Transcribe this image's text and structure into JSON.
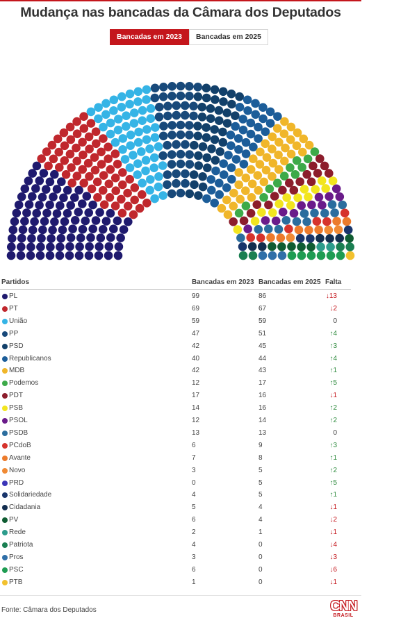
{
  "chart_data": {
    "type": "hemicycle",
    "title": "Mudança nas bancadas da Câmara dos Deputados",
    "tabs": [
      {
        "label": "Bancadas em 2023",
        "active": true
      },
      {
        "label": "Bancadas em 2025",
        "active": false
      }
    ],
    "table": {
      "headers": {
        "party": "Partidos",
        "seats_2023": "Bancadas em 2023",
        "seats_2025": "Bancadas em 2025",
        "change": "Falta"
      },
      "rows": [
        {
          "party": "PL",
          "color": "#1f1a6e",
          "seats_2023": "99",
          "seats_2025": "86",
          "change": "↓13",
          "dir": "down"
        },
        {
          "party": "PT",
          "color": "#c0272d",
          "seats_2023": "69",
          "seats_2025": "67",
          "change": "↓2",
          "dir": "down"
        },
        {
          "party": "União",
          "color": "#35b4e6",
          "seats_2023": "59",
          "seats_2025": "59",
          "change": "0",
          "dir": "zero"
        },
        {
          "party": "PP",
          "color": "#18497a",
          "seats_2023": "47",
          "seats_2025": "51",
          "change": "↑4",
          "dir": "up"
        },
        {
          "party": "PSD",
          "color": "#12406a",
          "seats_2023": "42",
          "seats_2025": "45",
          "change": "↑3",
          "dir": "up"
        },
        {
          "party": "Republicanos",
          "color": "#1c5d99",
          "seats_2023": "40",
          "seats_2025": "44",
          "change": "↑4",
          "dir": "up"
        },
        {
          "party": "MDB",
          "color": "#f0b62a",
          "seats_2023": "42",
          "seats_2025": "43",
          "change": "↑1",
          "dir": "up"
        },
        {
          "party": "Podemos",
          "color": "#3daa49",
          "seats_2023": "12",
          "seats_2025": "17",
          "change": "↑5",
          "dir": "up"
        },
        {
          "party": "PDT",
          "color": "#8c1d2c",
          "seats_2023": "17",
          "seats_2025": "16",
          "change": "↓1",
          "dir": "down"
        },
        {
          "party": "PSB",
          "color": "#f2e51f",
          "seats_2023": "14",
          "seats_2025": "16",
          "change": "↑2",
          "dir": "up"
        },
        {
          "party": "PSOL",
          "color": "#6a1b8a",
          "seats_2023": "12",
          "seats_2025": "14",
          "change": "↑2",
          "dir": "up"
        },
        {
          "party": "PSDB",
          "color": "#2b6d9e",
          "seats_2023": "13",
          "seats_2025": "13",
          "change": "0",
          "dir": "zero"
        },
        {
          "party": "PCdoB",
          "color": "#d6332c",
          "seats_2023": "6",
          "seats_2025": "9",
          "change": "↑3",
          "dir": "up"
        },
        {
          "party": "Avante",
          "color": "#ec7b2c",
          "seats_2023": "7",
          "seats_2025": "8",
          "change": "↑1",
          "dir": "up"
        },
        {
          "party": "Novo",
          "color": "#f08a34",
          "seats_2023": "3",
          "seats_2025": "5",
          "change": "↑2",
          "dir": "up"
        },
        {
          "party": "PRD",
          "color": "#3b35b8",
          "seats_2023": "0",
          "seats_2025": "5",
          "change": "↑5",
          "dir": "up"
        },
        {
          "party": "Solidariedade",
          "color": "#19356b",
          "seats_2023": "4",
          "seats_2025": "5",
          "change": "↑1",
          "dir": "up"
        },
        {
          "party": "Cidadania",
          "color": "#132e4f",
          "seats_2023": "5",
          "seats_2025": "4",
          "change": "↓1",
          "dir": "down"
        },
        {
          "party": "PV",
          "color": "#0f5c32",
          "seats_2023": "6",
          "seats_2025": "4",
          "change": "↓2",
          "dir": "down"
        },
        {
          "party": "Rede",
          "color": "#2c9c8c",
          "seats_2023": "2",
          "seats_2025": "1",
          "change": "↓1",
          "dir": "down"
        },
        {
          "party": "Patriota",
          "color": "#1a7f52",
          "seats_2023": "4",
          "seats_2025": "0",
          "change": "↓4",
          "dir": "down"
        },
        {
          "party": "Pros",
          "color": "#2f6fa8",
          "seats_2023": "3",
          "seats_2025": "0",
          "change": "↓3",
          "dir": "down"
        },
        {
          "party": "PSC",
          "color": "#1e9c52",
          "seats_2023": "6",
          "seats_2025": "0",
          "change": "↓6",
          "dir": "down"
        },
        {
          "party": "PTB",
          "color": "#f2c12e",
          "seats_2023": "1",
          "seats_2025": "0",
          "change": "↓1",
          "dir": "down"
        }
      ]
    }
  },
  "footer": {
    "source": "Fonte: Câmara dos Deputados"
  },
  "logo": {
    "text": "CNN",
    "subtext": "BRASIL"
  }
}
